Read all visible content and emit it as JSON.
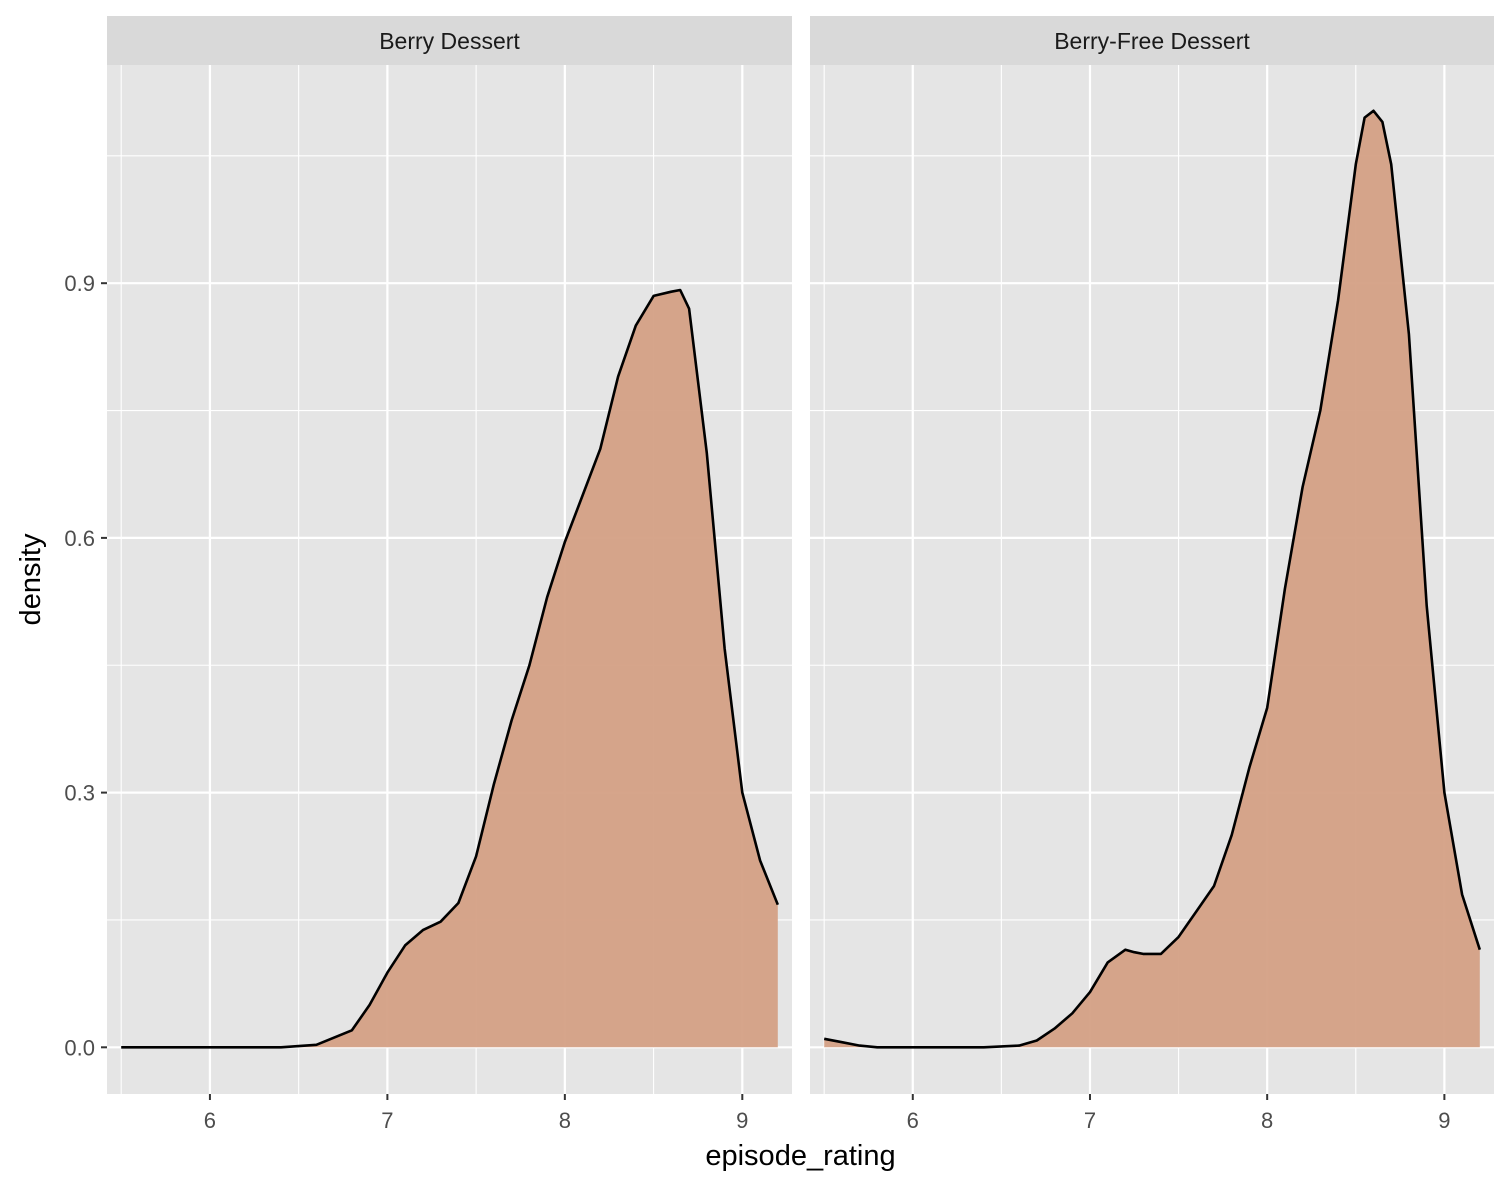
{
  "chart_data": {
    "type": "area",
    "subtype": "density",
    "facet_by": "panel",
    "xlabel": "episode_rating",
    "ylabel": "density",
    "xlim": [
      5.42,
      9.28
    ],
    "ylim": [
      -0.055,
      1.157
    ],
    "x_ticks": [
      6,
      7,
      8,
      9
    ],
    "y_ticks": [
      0.0,
      0.3,
      0.6,
      0.9
    ],
    "x_tick_labels": [
      "6",
      "7",
      "8",
      "9"
    ],
    "y_tick_labels": [
      "0.0",
      "0.3",
      "0.6",
      "0.9"
    ],
    "grid": true,
    "legend": "none",
    "colors": {
      "fill": "#d4a085",
      "line": "#000000",
      "panel_bg": "#e5e5e5",
      "strip_bg": "#d9d9d9",
      "grid": "#ffffff"
    },
    "panels": [
      {
        "title": "Berry Dessert",
        "x": [
          5.5,
          6.0,
          6.4,
          6.6,
          6.8,
          6.9,
          7.0,
          7.1,
          7.2,
          7.3,
          7.4,
          7.5,
          7.6,
          7.7,
          7.8,
          7.9,
          8.0,
          8.1,
          8.2,
          8.3,
          8.4,
          8.5,
          8.6,
          8.65,
          8.7,
          8.8,
          8.9,
          9.0,
          9.1,
          9.2
        ],
        "y": [
          0.0,
          0.0,
          0.0,
          0.003,
          0.02,
          0.05,
          0.088,
          0.12,
          0.138,
          0.148,
          0.17,
          0.225,
          0.31,
          0.385,
          0.45,
          0.53,
          0.595,
          0.65,
          0.705,
          0.79,
          0.85,
          0.885,
          0.89,
          0.892,
          0.87,
          0.7,
          0.47,
          0.3,
          0.22,
          0.168
        ]
      },
      {
        "title": "Berry-Free Dessert",
        "x": [
          5.5,
          5.6,
          5.7,
          5.8,
          6.0,
          6.4,
          6.6,
          6.7,
          6.8,
          6.9,
          7.0,
          7.1,
          7.2,
          7.25,
          7.3,
          7.4,
          7.5,
          7.6,
          7.7,
          7.8,
          7.9,
          8.0,
          8.1,
          8.2,
          8.3,
          8.4,
          8.5,
          8.55,
          8.6,
          8.65,
          8.7,
          8.8,
          8.9,
          9.0,
          9.1,
          9.2
        ],
        "y": [
          0.01,
          0.006,
          0.002,
          0.0,
          0.0,
          0.0,
          0.002,
          0.008,
          0.022,
          0.04,
          0.065,
          0.1,
          0.115,
          0.112,
          0.11,
          0.11,
          0.13,
          0.16,
          0.19,
          0.25,
          0.33,
          0.4,
          0.54,
          0.66,
          0.75,
          0.88,
          1.04,
          1.095,
          1.103,
          1.09,
          1.04,
          0.84,
          0.52,
          0.3,
          0.18,
          0.115
        ]
      }
    ]
  }
}
